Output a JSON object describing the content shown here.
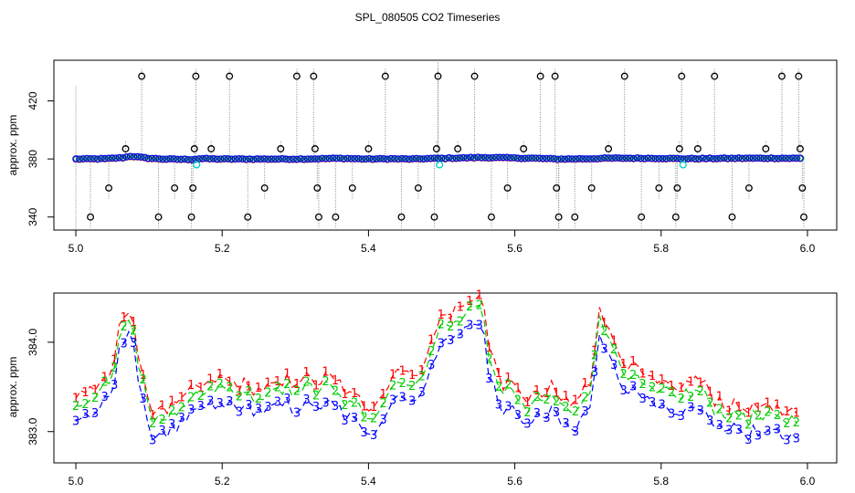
{
  "chart_data": [
    {
      "type": "scatter",
      "title": "SPL_080505  CO2 Timeseries",
      "xlabel": "",
      "ylabel": "approx. ppm",
      "xlim": [
        4.97,
        6.04
      ],
      "ylim": [
        331,
        448
      ],
      "x_ticks": [
        "5.0",
        "5.2",
        "5.4",
        "5.6",
        "5.8",
        "6.0"
      ],
      "y_ticks": [
        "340",
        "380",
        "420"
      ],
      "baseline": 380,
      "series_colors": {
        "open_circles": "#000000",
        "blue": "#0000ff",
        "green": "#00bb00",
        "cyan": "#00cccc",
        "dotted_line": "#888888"
      },
      "outliers": [
        {
          "x": 5.02,
          "y": 340
        },
        {
          "x": 5.045,
          "y": 360
        },
        {
          "x": 5.068,
          "y": 387
        },
        {
          "x": 5.09,
          "y": 437
        },
        {
          "x": 5.113,
          "y": 340
        },
        {
          "x": 5.135,
          "y": 360
        },
        {
          "x": 5.158,
          "y": 340
        },
        {
          "x": 5.16,
          "y": 360
        },
        {
          "x": 5.162,
          "y": 387
        },
        {
          "x": 5.164,
          "y": 437
        },
        {
          "x": 5.185,
          "y": 387
        },
        {
          "x": 5.21,
          "y": 437
        },
        {
          "x": 5.235,
          "y": 340
        },
        {
          "x": 5.258,
          "y": 360
        },
        {
          "x": 5.28,
          "y": 387
        },
        {
          "x": 5.302,
          "y": 437
        },
        {
          "x": 5.325,
          "y": 437
        },
        {
          "x": 5.327,
          "y": 387
        },
        {
          "x": 5.33,
          "y": 360
        },
        {
          "x": 5.332,
          "y": 340
        },
        {
          "x": 5.355,
          "y": 340
        },
        {
          "x": 5.378,
          "y": 360
        },
        {
          "x": 5.4,
          "y": 387
        },
        {
          "x": 5.423,
          "y": 437
        },
        {
          "x": 5.445,
          "y": 340
        },
        {
          "x": 5.468,
          "y": 360
        },
        {
          "x": 5.49,
          "y": 340
        },
        {
          "x": 5.493,
          "y": 387
        },
        {
          "x": 5.495,
          "y": 437
        },
        {
          "x": 5.522,
          "y": 387
        },
        {
          "x": 5.545,
          "y": 437
        },
        {
          "x": 5.568,
          "y": 340
        },
        {
          "x": 5.59,
          "y": 360
        },
        {
          "x": 5.612,
          "y": 387
        },
        {
          "x": 5.635,
          "y": 437
        },
        {
          "x": 5.655,
          "y": 437
        },
        {
          "x": 5.657,
          "y": 360
        },
        {
          "x": 5.66,
          "y": 340
        },
        {
          "x": 5.682,
          "y": 340
        },
        {
          "x": 5.705,
          "y": 360
        },
        {
          "x": 5.728,
          "y": 387
        },
        {
          "x": 5.75,
          "y": 437
        },
        {
          "x": 5.773,
          "y": 340
        },
        {
          "x": 5.797,
          "y": 360
        },
        {
          "x": 5.82,
          "y": 340
        },
        {
          "x": 5.822,
          "y": 360
        },
        {
          "x": 5.825,
          "y": 387
        },
        {
          "x": 5.828,
          "y": 437
        },
        {
          "x": 5.85,
          "y": 387
        },
        {
          "x": 5.873,
          "y": 437
        },
        {
          "x": 5.897,
          "y": 340
        },
        {
          "x": 5.92,
          "y": 360
        },
        {
          "x": 5.943,
          "y": 387
        },
        {
          "x": 5.965,
          "y": 437
        },
        {
          "x": 5.988,
          "y": 437
        },
        {
          "x": 5.99,
          "y": 387
        },
        {
          "x": 5.993,
          "y": 360
        },
        {
          "x": 5.995,
          "y": 340
        }
      ],
      "cyan_points": [
        {
          "x": 5.165,
          "y": 376
        },
        {
          "x": 5.497,
          "y": 376
        },
        {
          "x": 5.83,
          "y": 376
        }
      ],
      "anchors_x": [
        5.0,
        5.04,
        5.065,
        5.075,
        5.1,
        5.12,
        5.16,
        5.17,
        5.2,
        5.25,
        5.3,
        5.33,
        5.36,
        5.4,
        5.43,
        5.46,
        5.48,
        5.5,
        5.55,
        5.57,
        5.6,
        5.63,
        5.66,
        5.7,
        5.73,
        5.8,
        5.83,
        5.9,
        5.95,
        5.99
      ],
      "anchors_y": [
        380,
        380.2,
        381,
        382,
        380.5,
        380,
        379.7,
        380.3,
        380,
        380,
        380,
        380.2,
        380.5,
        380,
        380.2,
        380,
        380.3,
        380.5,
        381,
        381,
        380.7,
        380.5,
        380,
        380.2,
        380.6,
        380.5,
        380.2,
        380.5,
        380.6,
        380.5
      ]
    },
    {
      "type": "line",
      "title": "",
      "xlabel": "",
      "ylabel": "approx. ppm",
      "xlim": [
        4.97,
        6.04
      ],
      "ylim": [
        382.65,
        384.55
      ],
      "x_ticks": [
        "5.0",
        "5.2",
        "5.4",
        "5.6",
        "5.8",
        "6.0"
      ],
      "y_ticks": [
        "383.0",
        "384.0"
      ],
      "x_start": 5.0,
      "x_end": 5.985,
      "base_anchors_x": [
        5.0,
        5.03,
        5.05,
        5.06,
        5.075,
        5.085,
        5.1,
        5.13,
        5.15,
        5.17,
        5.2,
        5.25,
        5.3,
        5.35,
        5.4,
        5.42,
        5.44,
        5.46,
        5.48,
        5.5,
        5.53,
        5.555,
        5.565,
        5.58,
        5.6,
        5.62,
        5.65,
        5.68,
        5.705,
        5.715,
        5.73,
        5.75,
        5.78,
        5.82,
        5.85,
        5.88,
        5.92,
        5.96,
        5.985
      ],
      "base_anchors_y": [
        383.25,
        383.3,
        383.5,
        384.0,
        384.3,
        383.7,
        383.1,
        383.1,
        383.2,
        383.35,
        383.4,
        383.3,
        383.4,
        383.4,
        383.1,
        383.25,
        383.55,
        383.4,
        383.7,
        384.1,
        384.2,
        384.4,
        383.7,
        383.4,
        383.3,
        383.2,
        383.3,
        383.1,
        383.4,
        384.3,
        383.9,
        383.6,
        383.4,
        383.3,
        383.4,
        383.15,
        383.1,
        383.05,
        383.1
      ],
      "series": [
        {
          "name": "1",
          "label": "1",
          "color": "#ff0000",
          "offset": 0.18
        },
        {
          "name": "2",
          "label": "2",
          "color": "#00cc00",
          "offset": 0.07
        },
        {
          "name": "3",
          "label": "3",
          "color": "#0000ff",
          "offset": -0.1
        }
      ]
    }
  ]
}
